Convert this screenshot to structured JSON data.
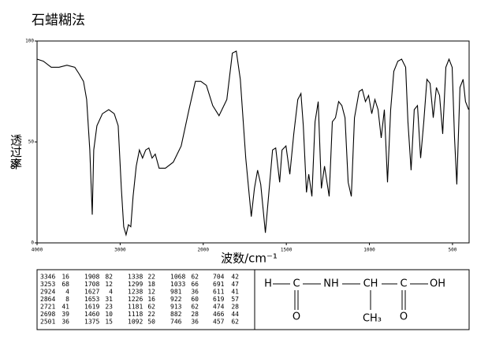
{
  "chart_data": {
    "type": "line",
    "title": "石蜡糊法",
    "y_label": "透过率",
    "y_unit": "%",
    "x_label": "波数/cm⁻¹",
    "color": "#000000",
    "xlim": [
      4000,
      400
    ],
    "xticks": [
      4000,
      3000,
      2000,
      1500,
      1000,
      500
    ],
    "ylim": [
      0,
      100
    ],
    "yticks": [
      0,
      50,
      100
    ],
    "x": [
      4000,
      3924,
      3829,
      3735,
      3640,
      3545,
      3498,
      3441,
      3403,
      3365,
      3336,
      3318,
      3280,
      3213,
      3137,
      3071,
      3024,
      2986,
      2957,
      2929,
      2900,
      2872,
      2844,
      2806,
      2768,
      2730,
      2692,
      2654,
      2616,
      2578,
      2531,
      2455,
      2360,
      2265,
      2171,
      2095,
      2028,
      1981,
      1943,
      1905,
      1858,
      1825,
      1801,
      1777,
      1744,
      1711,
      1692,
      1673,
      1654,
      1626,
      1607,
      1583,
      1564,
      1540,
      1526,
      1502,
      1479,
      1455,
      1431,
      1412,
      1398,
      1379,
      1365,
      1346,
      1327,
      1308,
      1289,
      1270,
      1242,
      1223,
      1204,
      1185,
      1166,
      1147,
      1128,
      1109,
      1090,
      1062,
      1043,
      1024,
      1005,
      986,
      967,
      948,
      929,
      910,
      891,
      872,
      853,
      829,
      806,
      782,
      768,
      749,
      730,
      711,
      692,
      673,
      654,
      635,
      616,
      597,
      578,
      559,
      540,
      521,
      502,
      488,
      474,
      455,
      436,
      422,
      403
    ],
    "values": [
      91,
      90,
      87,
      87,
      88,
      87,
      84,
      80,
      71,
      46,
      14,
      46,
      58,
      64,
      66,
      64,
      58,
      27,
      8,
      4,
      9,
      8,
      23,
      38,
      46,
      42,
      46,
      47,
      42,
      44,
      37,
      37,
      40,
      48,
      66,
      80,
      80,
      78,
      68,
      63,
      71,
      94,
      95,
      81,
      42,
      13,
      27,
      36,
      29,
      5,
      23,
      46,
      47,
      30,
      46,
      48,
      34,
      54,
      71,
      74,
      58,
      25,
      34,
      23,
      60,
      70,
      27,
      38,
      23,
      60,
      62,
      70,
      68,
      62,
      30,
      23,
      62,
      75,
      76,
      70,
      73,
      64,
      71,
      66,
      52,
      66,
      30,
      66,
      85,
      90,
      91,
      87,
      60,
      36,
      66,
      68,
      42,
      60,
      81,
      79,
      62,
      77,
      73,
      54,
      87,
      91,
      87,
      52,
      29,
      77,
      81,
      70,
      66
    ]
  },
  "peak_table": [
    [
      [
        3346,
        16
      ],
      [
        3253,
        68
      ],
      [
        2924,
        4
      ],
      [
        2864,
        8
      ],
      [
        2721,
        41
      ],
      [
        2698,
        39
      ],
      [
        2501,
        36
      ]
    ],
    [
      [
        1908,
        82
      ],
      [
        1708,
        12
      ],
      [
        1627,
        4
      ],
      [
        1653,
        31
      ],
      [
        1619,
        23
      ],
      [
        1460,
        10
      ],
      [
        1375,
        15
      ]
    ],
    [
      [
        1338,
        22
      ],
      [
        1299,
        18
      ],
      [
        1238,
        12
      ],
      [
        1226,
        16
      ],
      [
        1181,
        62
      ],
      [
        1118,
        22
      ],
      [
        1092,
        50
      ]
    ],
    [
      [
        1068,
        62
      ],
      [
        1033,
        66
      ],
      [
        981,
        36
      ],
      [
        922,
        60
      ],
      [
        913,
        62
      ],
      [
        882,
        28
      ],
      [
        746,
        36
      ]
    ],
    [
      [
        704,
        42
      ],
      [
        691,
        47
      ],
      [
        611,
        41
      ],
      [
        619,
        57
      ],
      [
        474,
        28
      ],
      [
        466,
        44
      ],
      [
        457,
        62
      ]
    ]
  ],
  "structure": {
    "atoms": [
      "H",
      "C",
      "NH",
      "CH",
      "C",
      "OH",
      "O",
      "CH₃",
      "O"
    ]
  }
}
